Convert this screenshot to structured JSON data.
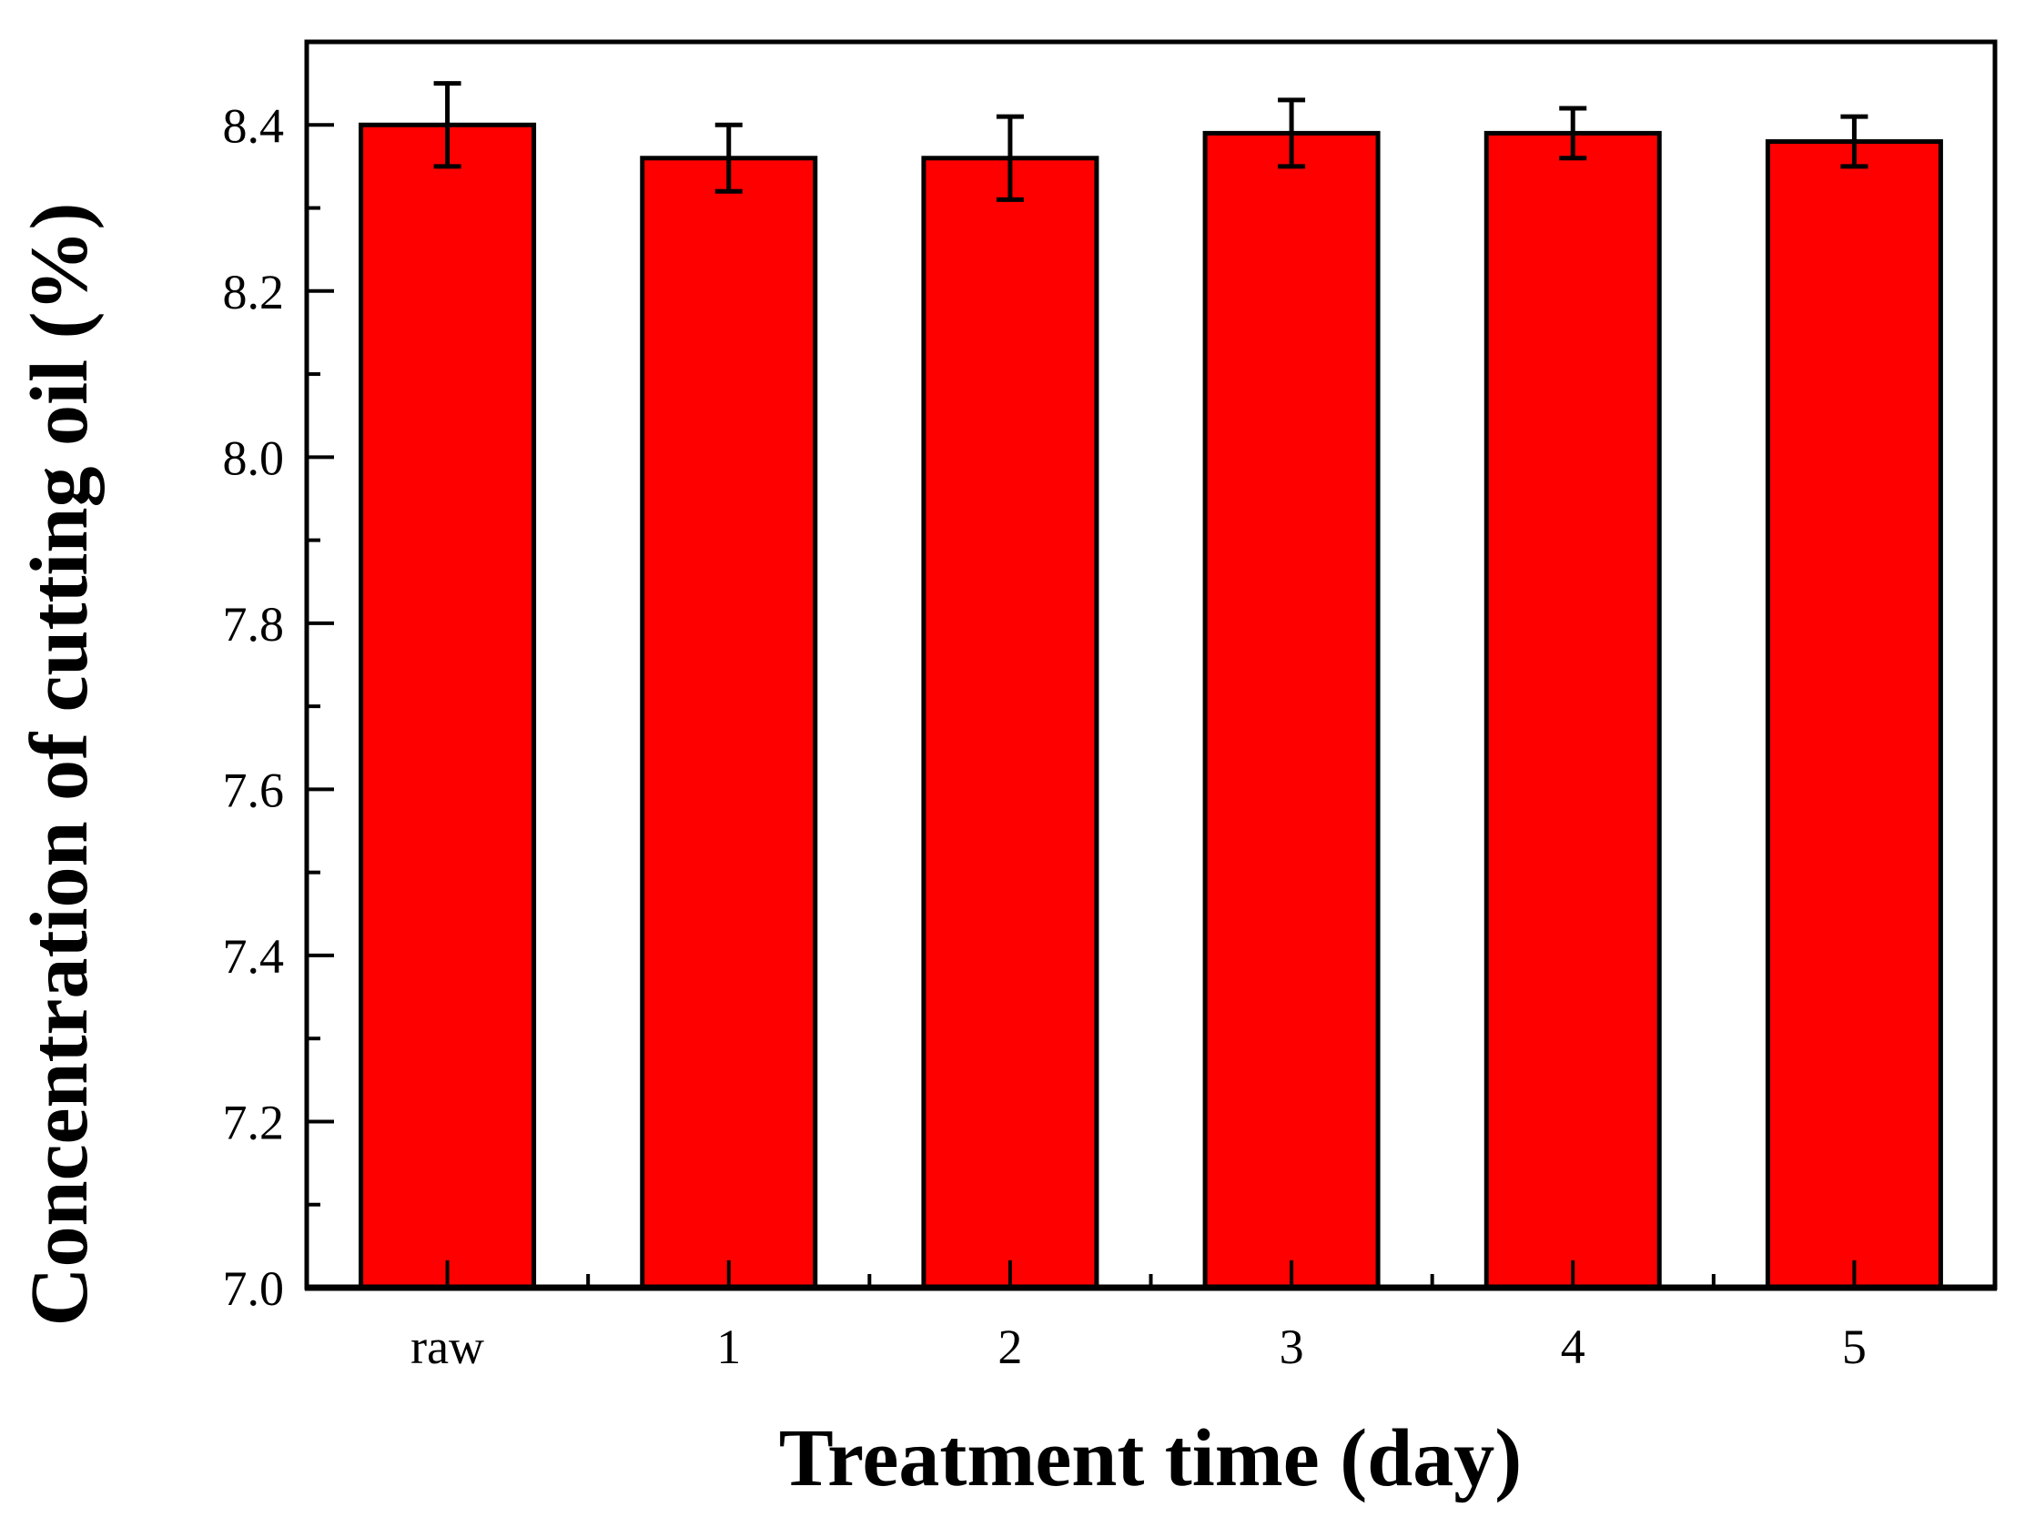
{
  "figure": {
    "background": "#ffffff"
  },
  "chart_data": {
    "type": "bar",
    "title": "",
    "xlabel": "Treatment time (day)",
    "ylabel": "Concentration of cutting oil (%)",
    "categories": [
      "raw",
      "1",
      "2",
      "3",
      "4",
      "5"
    ],
    "values": [
      8.4,
      8.36,
      8.36,
      8.39,
      8.39,
      8.38
    ],
    "errors": [
      0.05,
      0.04,
      0.05,
      0.04,
      0.03,
      0.03
    ],
    "ylim": [
      7.0,
      8.5
    ],
    "y_major_step": 0.2,
    "y_minor_step": 0.1,
    "y_tick_labels": [
      "7.0",
      "7.2",
      "7.4",
      "7.6",
      "7.8",
      "8.0",
      "8.2",
      "8.4"
    ],
    "bar_color": "#ff0000",
    "bar_border_color": "#000000",
    "error_bar_color": "#000000",
    "axis_color": "#000000",
    "grid": false,
    "legend_visible": false
  }
}
